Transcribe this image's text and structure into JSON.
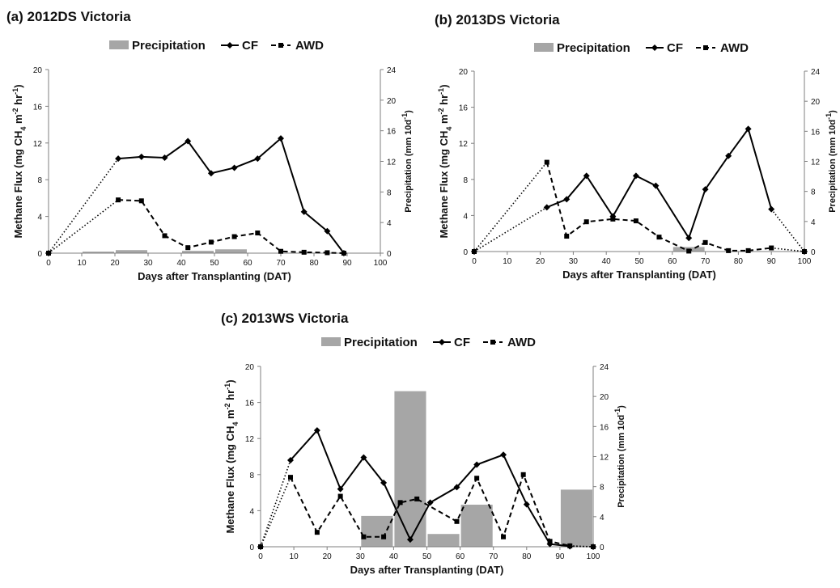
{
  "chart_data": [
    {
      "type": "line",
      "panel_label": "(a) 2012DS Victoria",
      "legend": [
        "Precipitation",
        "CF",
        "AWD"
      ],
      "xlabel": "Days after Transplanting (DAT)",
      "ylabel": "Methane Flux (mg CH4 m-2 hr-1)",
      "ylabel_parts": [
        "Methane Flux (mg CH",
        "4",
        " m",
        "-2",
        " hr",
        "-1",
        ")"
      ],
      "y2label": "Precipitation (mm 10d-1)",
      "y2label_parts": [
        "Precipitation (mm 10d",
        "-1",
        ")"
      ],
      "xlim": [
        0,
        100
      ],
      "ylim": [
        0,
        20
      ],
      "y2lim": [
        0,
        24
      ],
      "xticks": [
        0,
        10,
        20,
        30,
        40,
        50,
        60,
        70,
        80,
        90,
        100
      ],
      "yticks": [
        0,
        4,
        8,
        12,
        16,
        20
      ],
      "y2ticks": [
        0,
        4,
        8,
        12,
        16,
        20,
        24
      ],
      "bars": [
        {
          "x0": 10,
          "x1": 20,
          "value": 0.2
        },
        {
          "x0": 20,
          "x1": 30,
          "value": 0.4
        },
        {
          "x0": 40,
          "x1": 50,
          "value": 0.3
        },
        {
          "x0": 50,
          "x1": 60,
          "value": 0.5
        }
      ],
      "series": [
        {
          "name": "CF",
          "x": [
            0,
            21,
            28,
            35,
            42,
            49,
            56,
            63,
            70,
            77,
            84,
            89
          ],
          "y": [
            0,
            10.3,
            10.5,
            10.4,
            12.2,
            8.7,
            9.3,
            10.3,
            12.5,
            4.5,
            2.4,
            0
          ]
        },
        {
          "name": "AWD",
          "x": [
            0,
            21,
            28,
            35,
            42,
            49,
            56,
            63,
            70,
            77,
            84,
            89
          ],
          "y": [
            0,
            5.8,
            5.7,
            1.9,
            0.6,
            1.2,
            1.8,
            2.2,
            0.2,
            0.1,
            0.05,
            0
          ]
        }
      ]
    },
    {
      "type": "line",
      "panel_label": "(b) 2013DS Victoria",
      "legend": [
        "Precipitation",
        "CF",
        "AWD"
      ],
      "xlabel": "Days after Transplanting (DAT)",
      "ylabel": "Methane Flux (mg CH4 m-2 hr-1)",
      "ylabel_parts": [
        "Methane Flux (mg CH",
        "4",
        " m",
        "-2",
        " hr",
        "-1",
        ")"
      ],
      "y2label": "Precipitation (mm 10d-1)",
      "y2label_parts": [
        "Precipitation (mm 10d",
        "-1",
        ")"
      ],
      "xlim": [
        0,
        100
      ],
      "ylim": [
        0,
        20
      ],
      "y2lim": [
        0,
        24
      ],
      "xticks": [
        0,
        10,
        20,
        30,
        40,
        50,
        60,
        70,
        80,
        90,
        100
      ],
      "yticks": [
        0,
        4,
        8,
        12,
        16,
        20
      ],
      "y2ticks": [
        0,
        4,
        8,
        12,
        16,
        20,
        24
      ],
      "bars": [
        {
          "x0": 60,
          "x1": 70,
          "value": 0.6
        }
      ],
      "series": [
        {
          "name": "CF",
          "x": [
            0,
            22,
            28,
            34,
            42,
            49,
            55,
            65,
            70,
            77,
            83,
            90,
            100
          ],
          "y": [
            0,
            4.9,
            5.8,
            8.4,
            3.9,
            8.4,
            7.3,
            1.5,
            6.9,
            10.6,
            13.6,
            4.7,
            0
          ]
        },
        {
          "name": "AWD",
          "x": [
            0,
            22,
            28,
            34,
            42,
            49,
            56,
            65,
            70,
            77,
            83,
            90,
            100
          ],
          "y": [
            0,
            9.9,
            1.7,
            3.3,
            3.6,
            3.4,
            1.6,
            0.05,
            1.0,
            0.1,
            0.1,
            0.4,
            0
          ]
        }
      ]
    },
    {
      "type": "line",
      "panel_label": "(c) 2013WS Victoria",
      "legend": [
        "Precipitation",
        "CF",
        "AWD"
      ],
      "xlabel": "Days after Transplanting (DAT)",
      "ylabel": "Methane Flux (mg CH4 m-2 hr-1)",
      "ylabel_parts": [
        "Methane Flux (mg CH",
        "4",
        " m",
        "-2",
        " hr",
        "-1",
        ")"
      ],
      "y2label": "Precipitation (mm 10d-1)",
      "y2label_parts": [
        "Precipitation (mm 10d",
        "-1",
        ")"
      ],
      "xlim": [
        0,
        100
      ],
      "ylim": [
        0,
        20
      ],
      "y2lim": [
        0,
        24
      ],
      "xticks": [
        0,
        10,
        20,
        30,
        40,
        50,
        60,
        70,
        80,
        90,
        100
      ],
      "yticks": [
        0,
        4,
        8,
        12,
        16,
        20
      ],
      "y2ticks": [
        0,
        4,
        8,
        12,
        16,
        20,
        24
      ],
      "bars": [
        {
          "x0": 30,
          "x1": 40,
          "value": 4.1
        },
        {
          "x0": 40,
          "x1": 50,
          "value": 20.7
        },
        {
          "x0": 50,
          "x1": 60,
          "value": 1.7
        },
        {
          "x0": 60,
          "x1": 70,
          "value": 5.6
        },
        {
          "x0": 90,
          "x1": 100,
          "value": 7.6
        }
      ],
      "series": [
        {
          "name": "CF",
          "x": [
            0,
            9,
            17,
            24,
            31,
            37,
            45,
            51,
            59,
            65,
            73,
            80,
            87,
            93,
            100
          ],
          "y": [
            0,
            9.6,
            12.9,
            6.4,
            9.9,
            7.1,
            0.8,
            4.9,
            6.6,
            9.1,
            10.2,
            4.7,
            0.3,
            0.05,
            0
          ]
        },
        {
          "name": "AWD",
          "x": [
            0,
            9,
            17,
            24,
            31,
            37,
            42,
            47,
            59,
            65,
            73,
            79,
            87,
            93,
            100
          ],
          "y": [
            0,
            7.7,
            1.6,
            5.6,
            1.1,
            1.1,
            4.9,
            5.3,
            2.8,
            7.6,
            1.1,
            8.0,
            0.6,
            0.1,
            0
          ]
        }
      ]
    }
  ],
  "colors": {
    "bar": "#a6a6a6",
    "line": "#000000",
    "axis": "#7f7f7f"
  }
}
